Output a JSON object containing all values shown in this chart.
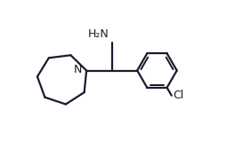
{
  "bg_color": "#ffffff",
  "line_color": "#1a1a2e",
  "line_width": 1.6,
  "text_color": "#1a1a2e",
  "font_size": 8.5,
  "nh2_label": "H₂N",
  "n_label": "N",
  "cl_label": "Cl",
  "figsize": [
    2.73,
    1.59
  ],
  "dpi": 100
}
